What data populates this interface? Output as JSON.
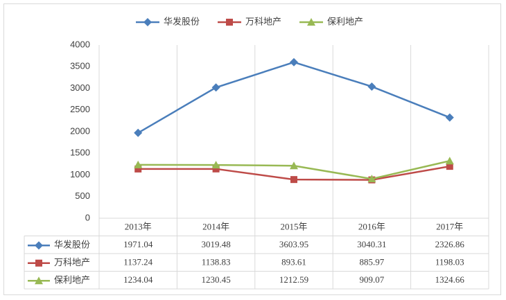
{
  "chart_data": {
    "type": "line",
    "categories": [
      "2013年",
      "2014年",
      "2015年",
      "2016年",
      "2017年"
    ],
    "series": [
      {
        "name": "华发股份",
        "color": "#4a7ebb",
        "marker": "diamond",
        "values": [
          1971.04,
          3019.48,
          3603.95,
          3040.31,
          2326.86
        ]
      },
      {
        "name": "万科地产",
        "color": "#be4b48",
        "marker": "square",
        "values": [
          1137.24,
          1138.83,
          893.61,
          885.97,
          1198.03
        ]
      },
      {
        "name": "保利地产",
        "color": "#98b954",
        "marker": "triangle",
        "values": [
          1234.04,
          1230.45,
          1212.59,
          909.07,
          1324.66
        ]
      }
    ],
    "ylim": [
      0,
      4000
    ],
    "yticks": [
      0,
      500,
      1000,
      1500,
      2000,
      2500,
      3000,
      3500,
      4000
    ],
    "legend": "top",
    "data_table": true
  }
}
